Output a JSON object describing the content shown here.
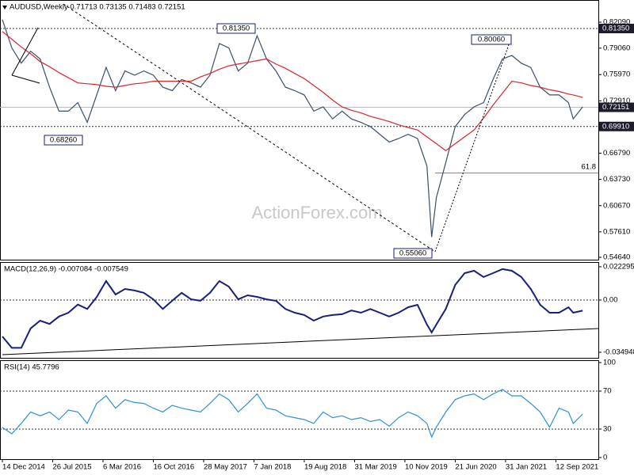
{
  "watermark": "ActionForex.com",
  "chart_data": [
    {
      "type": "line",
      "title": "AUDUSD,Weekly  0.71713 0.73135 0.71483 0.72151",
      "x": [
        0,
        6,
        12,
        18,
        24,
        30,
        36,
        42,
        48,
        54,
        60,
        66,
        72,
        78,
        84,
        90,
        96,
        102,
        108,
        114,
        120,
        126,
        132,
        138,
        144,
        150,
        156,
        162,
        168,
        174,
        180,
        186,
        192,
        198,
        204,
        210,
        216,
        222,
        228,
        234,
        240,
        246,
        252,
        258,
        264,
        270,
        273,
        276,
        282,
        288,
        294,
        300,
        306,
        312,
        318,
        324,
        330,
        336,
        342,
        348,
        354,
        360,
        363,
        369
      ],
      "series": [
        {
          "color": "#3a5068",
          "values": [
            0.824,
            0.791,
            0.773,
            0.787,
            0.778,
            0.745,
            0.717,
            0.717,
            0.727,
            0.704,
            0.736,
            0.768,
            0.741,
            0.764,
            0.759,
            0.764,
            0.759,
            0.745,
            0.741,
            0.754,
            0.75,
            0.745,
            0.759,
            0.796,
            0.791,
            0.764,
            0.773,
            0.805,
            0.778,
            0.764,
            0.745,
            0.741,
            0.736,
            0.717,
            0.722,
            0.708,
            0.717,
            0.708,
            0.704,
            0.699,
            0.69,
            0.681,
            0.685,
            0.69,
            0.685,
            0.653,
            0.57,
            0.616,
            0.657,
            0.699,
            0.713,
            0.722,
            0.727,
            0.754,
            0.778,
            0.782,
            0.773,
            0.768,
            0.745,
            0.736,
            0.736,
            0.727,
            0.708,
            0.722
          ]
        },
        {
          "color": "#e0242a",
          "values": [
            0.81,
            0.801,
            0.792,
            0.784,
            0.775,
            0.769,
            0.762,
            0.756,
            0.75,
            0.749,
            0.748,
            0.746,
            0.745,
            0.747,
            0.749,
            0.75,
            0.752,
            0.752,
            0.752,
            0.752,
            0.752,
            0.757,
            0.761,
            0.766,
            0.77,
            0.772,
            0.774,
            0.776,
            0.778,
            0.772,
            0.767,
            0.761,
            0.755,
            0.747,
            0.739,
            0.73,
            0.722,
            0.718,
            0.715,
            0.711,
            0.708,
            0.705,
            0.701,
            0.698,
            0.695,
            0.687,
            0.683,
            0.679,
            0.671,
            0.679,
            0.687,
            0.695,
            0.709,
            0.724,
            0.738,
            0.752,
            0.75,
            0.747,
            0.745,
            0.742,
            0.74,
            0.737,
            0.736,
            0.733
          ]
        }
      ],
      "xlim": [
        -1.5,
        379
      ],
      "ylim": [
        0.5436,
        0.8468
      ],
      "yticks": [
        {
          "value": 0.8209,
          "label": "0.82090"
        },
        {
          "value": 0.7906,
          "label": "0.79060"
        },
        {
          "value": 0.7597,
          "label": "0.75970"
        },
        {
          "value": 0.7291,
          "label": "0.72910"
        },
        {
          "value": 0.6679,
          "label": "0.66790"
        },
        {
          "value": 0.6373,
          "label": "0.63730"
        },
        {
          "value": 0.6067,
          "label": "0.60670"
        },
        {
          "value": 0.5761,
          "label": "0.57610"
        },
        {
          "value": 0.5464,
          "label": "0.54640"
        }
      ],
      "levels": [
        {
          "value": 0.8135,
          "label": "0.81350"
        },
        {
          "value": 0.6991,
          "label": "0.69910"
        }
      ],
      "last_price": {
        "value": 0.72151,
        "label": "0.72151"
      },
      "fib_level": 0.6448,
      "fib_label": "61.8",
      "annotations": [
        "0.81350",
        "0.80060",
        "0.68260",
        "0.55060"
      ]
    },
    {
      "type": "line",
      "title": "MACD(12,26,9) -0.007084 -0.007549",
      "x": [
        0,
        6,
        12,
        18,
        24,
        30,
        36,
        42,
        48,
        54,
        60,
        66,
        72,
        78,
        84,
        90,
        96,
        102,
        108,
        114,
        120,
        126,
        132,
        138,
        144,
        150,
        156,
        162,
        168,
        174,
        180,
        186,
        192,
        198,
        204,
        210,
        216,
        222,
        228,
        234,
        240,
        246,
        252,
        258,
        264,
        270,
        273,
        276,
        282,
        288,
        294,
        300,
        306,
        312,
        318,
        324,
        330,
        336,
        342,
        348,
        354,
        360,
        363,
        369
      ],
      "series": [
        {
          "color": "#1a1f7a",
          "values": [
            -0.0244,
            -0.032,
            -0.032,
            -0.019,
            -0.0138,
            -0.016,
            -0.011,
            -0.0085,
            -0.003,
            -0.006,
            0.002,
            0.0127,
            0.0037,
            0.0074,
            0.0064,
            0.0048,
            0.0005,
            -0.006,
            -0.0005,
            0.0048,
            0.0005,
            -0.0005,
            0.0048,
            0.0127,
            0.009,
            0.0005,
            0.0032,
            0.0021,
            0.0005,
            -0.0005,
            -0.006,
            -0.0085,
            -0.01,
            -0.0138,
            -0.011,
            -0.01,
            -0.0095,
            -0.007,
            -0.0085,
            -0.006,
            -0.0085,
            -0.011,
            -0.0085,
            -0.0048,
            -0.0032,
            -0.0164,
            -0.0217,
            -0.0164,
            -0.006,
            0.0101,
            0.018,
            0.0196,
            0.0154,
            0.018,
            0.0207,
            0.0196,
            0.0154,
            0.0074,
            -0.0032,
            -0.0085,
            -0.0085,
            -0.0048,
            -0.0085,
            -0.0071
          ]
        }
      ],
      "xlim": [
        -1.5,
        379
      ],
      "ylim": [
        -0.03869,
        0.02544
      ],
      "yticks": [
        0.022295,
        {
          "value": 0,
          "label": "0.00"
        },
        -0.034948
      ],
      "levels": [
        0
      ]
    },
    {
      "type": "line",
      "title": "RSI(14) 45.7796",
      "x": [
        0,
        6,
        12,
        18,
        24,
        30,
        36,
        42,
        48,
        54,
        60,
        66,
        72,
        78,
        84,
        90,
        96,
        102,
        108,
        114,
        120,
        126,
        132,
        138,
        144,
        150,
        156,
        162,
        168,
        174,
        180,
        186,
        192,
        198,
        204,
        210,
        216,
        222,
        228,
        234,
        240,
        246,
        252,
        258,
        264,
        270,
        273,
        276,
        282,
        288,
        294,
        300,
        306,
        312,
        318,
        324,
        330,
        336,
        342,
        348,
        354,
        360,
        363,
        369
      ],
      "series": [
        {
          "color": "#2f8fdc",
          "values": [
            31.7,
            25,
            36,
            48,
            44,
            48,
            40,
            50,
            48,
            36,
            57,
            65,
            52,
            61,
            58,
            57,
            52,
            48,
            55,
            52,
            50,
            48,
            57,
            67,
            61,
            48,
            57,
            67,
            52,
            50,
            44,
            42,
            40,
            36,
            48,
            42,
            44,
            40,
            42,
            38,
            40,
            33,
            42,
            48,
            44,
            36,
            21.7,
            32,
            48,
            61,
            65,
            67,
            61,
            67,
            71.7,
            65,
            65,
            57,
            48,
            32,
            52,
            48,
            36,
            45.78
          ]
        }
      ],
      "xlim": [
        -1.5,
        379
      ],
      "ylim": [
        -1.7,
        102.5
      ],
      "yticks": [
        100,
        70,
        30,
        0
      ],
      "levels": [
        30,
        70
      ],
      "xticks": [
        {
          "value": 0,
          "label": "14 Dec 2014"
        },
        {
          "value": 32,
          "label": "26 Jul 2015"
        },
        {
          "value": 64,
          "label": "6 Mar 2016"
        },
        {
          "value": 96,
          "label": "16 Oct 2016"
        },
        {
          "value": 128,
          "label": "28 May 2017"
        },
        {
          "value": 160,
          "label": "7 Jan 2018"
        },
        {
          "value": 192,
          "label": "19 Aug 2018"
        },
        {
          "value": 224,
          "label": "31 Mar 2019"
        },
        {
          "value": 256,
          "label": "10 Nov 2019"
        },
        {
          "value": 288,
          "label": "21 Jun 2020"
        },
        {
          "value": 320,
          "label": "31 Jan 2021"
        },
        {
          "value": 352,
          "label": "12 Sep 2021"
        }
      ]
    }
  ]
}
